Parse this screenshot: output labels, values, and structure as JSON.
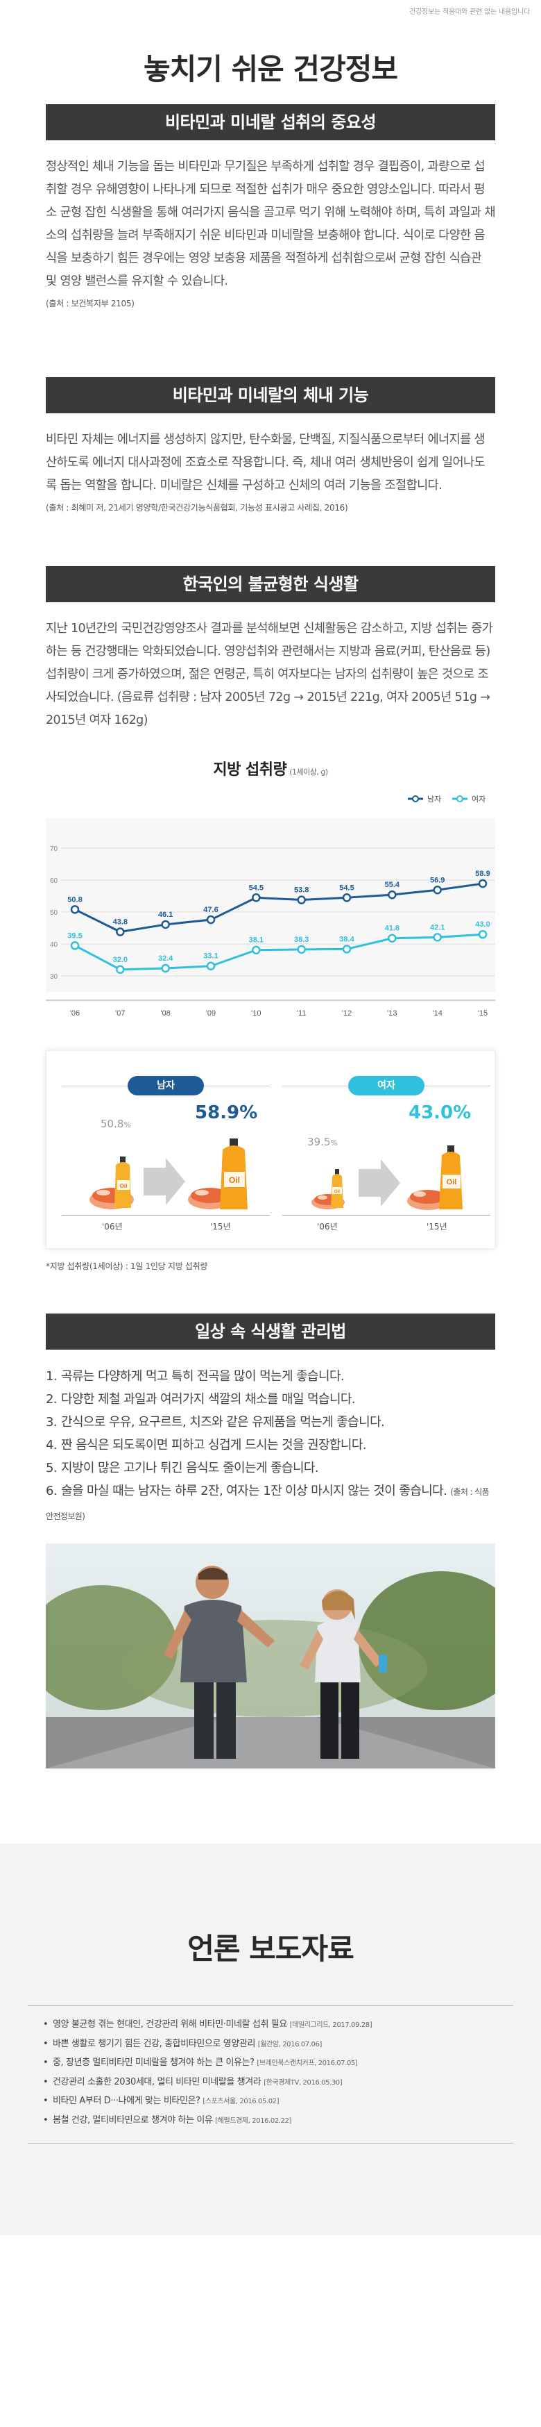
{
  "disclaimer": "건강정보는 적용대와 관련 없는 내용입니다",
  "title": "놓치기 쉬운 건강정보",
  "section1": {
    "header": "비타민과 미네랄 섭취의 중요성",
    "paragraph": "정상적인 체내 기능을 돕는 비타민과 무기질은 부족하게 섭취할 경우 결핍증이, 과량으로 섭취할 경우 유해영향이 나타나게 되므로 적절한 섭취가 매우 중요한 영양소입니다. 따라서 평소 균형 잡힌 식생활을 통해 여러가지 음식을 골고루 먹기 위해 노력해야 하며, 특히 과일과 채소의 섭취량을 늘려 부족해지기 쉬운 비타민과 미네랄을 보충해야 합니다. 식이로 다양한 음식을 보충하기 힘든 경우에는 영양 보충용 제품을 적절하게 섭취함으로써 균형 잡힌 식습관 및 영양 밸런스를 유지할 수 있습니다.",
    "source": "(출처 : 보건복지부 2105)"
  },
  "section2": {
    "header": "비타민과 미네랄의 체내 기능",
    "paragraph": "비타민 자체는 에너지를 생성하지 않지만, 탄수화물, 단백질, 지질식품으로부터 에너지를 생산하도록 에너지 대사과정에 조효소로 작용합니다. 즉, 체내 여러 생체반응이 쉽게 일어나도록 돕는 역할을 합니다. 미네랄은 신체를 구성하고 신체의 여러 기능을 조절합니다.",
    "source": "(출처 : 최혜미 저, 21세기 영양학/한국건강기능식품협회, 기능성 표시광고 사례집, 2016)"
  },
  "section3": {
    "header": "한국인의 불균형한 식생활",
    "paragraph": "지난 10년간의 국민건강영양조사 결과를 분석해보면 신체활동은 감소하고, 지방 섭취는 증가하는 등 건강행태는 악화되었습니다. 영양섭취와 관련해서는 지방과 음료(커피, 탄산음료 등) 섭취량이 크게 증가하였으며, 젊은 연령군, 특히 여자보다는 남자의 섭취량이 높은 것으로 조사되었습니다. (음료류 섭취량 : 남자 2005년 72g → 2015년 221g, 여자 2005년 51g → 2015년 여자 162g)",
    "chart_title": "지방 섭취량",
    "chart_subtitle": "(1세이상, g)",
    "comparison": {
      "male_label": "남자",
      "female_label": "여자",
      "male_before": "50.8",
      "male_after": "58.9",
      "female_before": "39.5",
      "female_after": "43.0",
      "pct": "%",
      "year_before": "'06년",
      "year_after": "'15년",
      "oil_label": "Oil"
    },
    "footnote": "*지방 섭취량(1세이상) : 1일 1인당 지방 섭취량"
  },
  "chart_data": {
    "type": "line",
    "title": "지방 섭취량",
    "subtitle": "(1세이상, g)",
    "categories": [
      "'06",
      "'07",
      "'08",
      "'09",
      "'10",
      "'11",
      "'12",
      "'13",
      "'14",
      "'15"
    ],
    "yticks": [
      30,
      40,
      50,
      60,
      70
    ],
    "ylim": [
      25,
      75
    ],
    "grid": true,
    "legend_position": "top-right",
    "series": [
      {
        "name": "남자",
        "color": "#1e5a96",
        "values": [
          50.8,
          43.8,
          46.1,
          47.6,
          54.5,
          53.8,
          54.5,
          55.4,
          56.9,
          58.9
        ]
      },
      {
        "name": "여자",
        "color": "#2ec0dc",
        "values": [
          39.5,
          32.0,
          32.4,
          33.1,
          38.1,
          38.3,
          38.4,
          41.8,
          42.1,
          43.0
        ]
      }
    ]
  },
  "section4": {
    "header": "일상 속 식생활 관리법",
    "items": [
      {
        "num": "1.",
        "text": "곡류는 다양하게 먹고 특히 전곡을 많이 먹는게 좋습니다.",
        "src": ""
      },
      {
        "num": "2.",
        "text": "다양한 제철 과일과 여러가지 색깔의 채소를 매일 먹습니다.",
        "src": ""
      },
      {
        "num": "3.",
        "text": "간식으로 우유, 요구르트, 치즈와 같은 유제품을 먹는게 좋습니다.",
        "src": ""
      },
      {
        "num": "4.",
        "text": "짠 음식은 되도록이면 피하고 싱겁게 드시는 것을 권장합니다.",
        "src": ""
      },
      {
        "num": "5.",
        "text": "지방이 많은 고기나 튀긴 음식도 줄이는게 좋습니다.",
        "src": ""
      },
      {
        "num": "6.",
        "text": "술을 마실 때는 남자는 하루 2잔, 여자는 1잔 이상 마시지 않는 것이 좋습니다.",
        "src": "(출처 : 식품안전정보원)"
      }
    ]
  },
  "press": {
    "title": "언론 보도자료",
    "items": [
      {
        "text": "영양 불균형 겪는 현대인, 건강관리 위해 비타민·미네랄 섭취 필요",
        "src": "[데일리그리드, 2017.09.28]"
      },
      {
        "text": "바쁜 생활로 챙기기 힘든 건강, 종합비타민으로 영양관리",
        "src": "[월간암, 2016.07.06]"
      },
      {
        "text": "중, 장년층 멀티비타민 미네랄을 챙겨야 하는 큰 이유는?",
        "src": "[브레인북스캔치커프, 2016.07.05]"
      },
      {
        "text": "건강관리 소홀한 2030세대, 멀티 비타민 미네랄을 챙겨라",
        "src": "[한국경제TV, 2016.05.30]"
      },
      {
        "text": "비타민 A부터 D···나에게 맞는 비타민은?",
        "src": "[스포츠서울, 2016.05.02]"
      },
      {
        "text": "봄철 건강, 멀티비타민으로 챙겨야 하는 이유",
        "src": "[헤럴드경제, 2016.02.22]"
      }
    ]
  },
  "colors": {
    "male": "#1e5a96",
    "female": "#2ec0dc",
    "header_bg": "#3a3a3a",
    "accent_orange": "#f08c1e"
  }
}
